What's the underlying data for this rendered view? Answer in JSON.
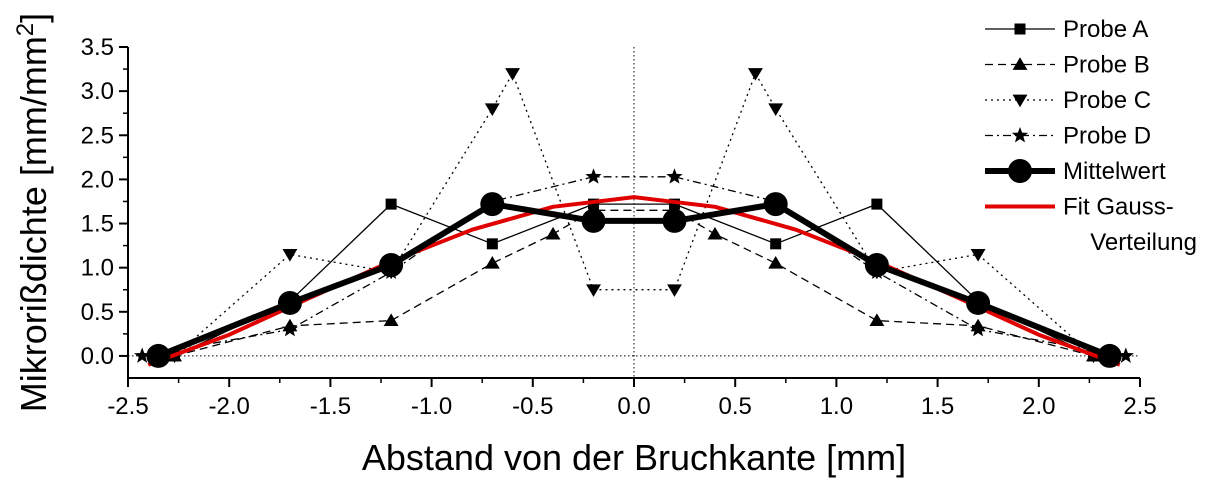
{
  "chart_data": {
    "type": "line",
    "xlabel": "Abstand von der Bruchkante [mm]",
    "ylabel": "Mikrorißdichte [mm/mm²]",
    "xlim": [
      -2.5,
      2.5
    ],
    "ylim": [
      -0.25,
      3.5
    ],
    "xticks": [
      "-2.5",
      "-2.0",
      "-1.5",
      "-1.0",
      "-0.5",
      "0.0",
      "0.5",
      "1.0",
      "1.5",
      "2.0",
      "2.5"
    ],
    "yticks": [
      "0.0",
      "0.5",
      "1.0",
      "1.5",
      "2.0",
      "2.5",
      "3.0",
      "3.5"
    ],
    "legend_position": "top-right",
    "reference_lines": {
      "x": 0,
      "y": 0,
      "style": "dotted"
    },
    "series": [
      {
        "name": "Probe A",
        "marker": "square",
        "line": "solid",
        "color": "#000000",
        "points": [
          [
            -2.27,
            0.0
          ],
          [
            -1.7,
            0.62
          ],
          [
            -1.2,
            1.72
          ],
          [
            -0.7,
            1.27
          ],
          [
            -0.2,
            1.72
          ],
          [
            0.2,
            1.72
          ],
          [
            0.7,
            1.27
          ],
          [
            1.2,
            1.72
          ],
          [
            1.7,
            0.62
          ],
          [
            2.27,
            0.0
          ]
        ]
      },
      {
        "name": "Probe B",
        "marker": "triangle-up",
        "line": "dashed",
        "color": "#000000",
        "points": [
          [
            -2.27,
            0.0
          ],
          [
            -1.7,
            0.34
          ],
          [
            -1.2,
            0.4
          ],
          [
            -0.7,
            1.05
          ],
          [
            -0.4,
            1.38
          ],
          [
            -0.2,
            1.65
          ],
          [
            0.2,
            1.65
          ],
          [
            0.4,
            1.38
          ],
          [
            0.7,
            1.05
          ],
          [
            1.2,
            0.4
          ],
          [
            1.7,
            0.34
          ],
          [
            2.27,
            0.0
          ]
        ]
      },
      {
        "name": "Probe C",
        "marker": "triangle-down",
        "line": "dotted",
        "color": "#000000",
        "points": [
          [
            -2.27,
            0.0
          ],
          [
            -1.7,
            1.15
          ],
          [
            -1.2,
            0.95
          ],
          [
            -0.7,
            2.8
          ],
          [
            -0.6,
            3.2
          ],
          [
            -0.2,
            0.75
          ],
          [
            0.2,
            0.75
          ],
          [
            0.6,
            3.2
          ],
          [
            0.7,
            2.8
          ],
          [
            1.2,
            0.95
          ],
          [
            1.7,
            1.15
          ],
          [
            2.27,
            0.0
          ]
        ]
      },
      {
        "name": "Probe D",
        "marker": "star",
        "line": "dash-dot",
        "color": "#000000",
        "points": [
          [
            -2.43,
            0.0
          ],
          [
            -1.7,
            0.3
          ],
          [
            -1.2,
            0.95
          ],
          [
            -0.7,
            1.75
          ],
          [
            -0.2,
            2.03
          ],
          [
            0.2,
            2.03
          ],
          [
            0.7,
            1.75
          ],
          [
            1.2,
            0.95
          ],
          [
            1.7,
            0.3
          ],
          [
            2.43,
            0.0
          ]
        ]
      },
      {
        "name": "Mittelwert",
        "marker": "circle",
        "line": "thick",
        "color": "#000000",
        "points": [
          [
            -2.35,
            0.0
          ],
          [
            -1.7,
            0.6
          ],
          [
            -1.2,
            1.03
          ],
          [
            -0.7,
            1.72
          ],
          [
            -0.2,
            1.53
          ],
          [
            0.2,
            1.53
          ],
          [
            0.7,
            1.72
          ],
          [
            1.2,
            1.03
          ],
          [
            1.7,
            0.6
          ],
          [
            2.35,
            0.0
          ]
        ]
      },
      {
        "name": "Fit Gauss-\nVerteilung",
        "marker": "none",
        "line": "solid",
        "color": "#e00000",
        "points": [
          [
            -2.4,
            -0.1
          ],
          [
            -2.0,
            0.24
          ],
          [
            -1.6,
            0.66
          ],
          [
            -1.2,
            1.07
          ],
          [
            -0.8,
            1.43
          ],
          [
            -0.4,
            1.69
          ],
          [
            0.0,
            1.8
          ],
          [
            0.4,
            1.69
          ],
          [
            0.8,
            1.43
          ],
          [
            1.2,
            1.07
          ],
          [
            1.6,
            0.66
          ],
          [
            2.0,
            0.24
          ],
          [
            2.4,
            -0.1
          ]
        ]
      }
    ]
  }
}
